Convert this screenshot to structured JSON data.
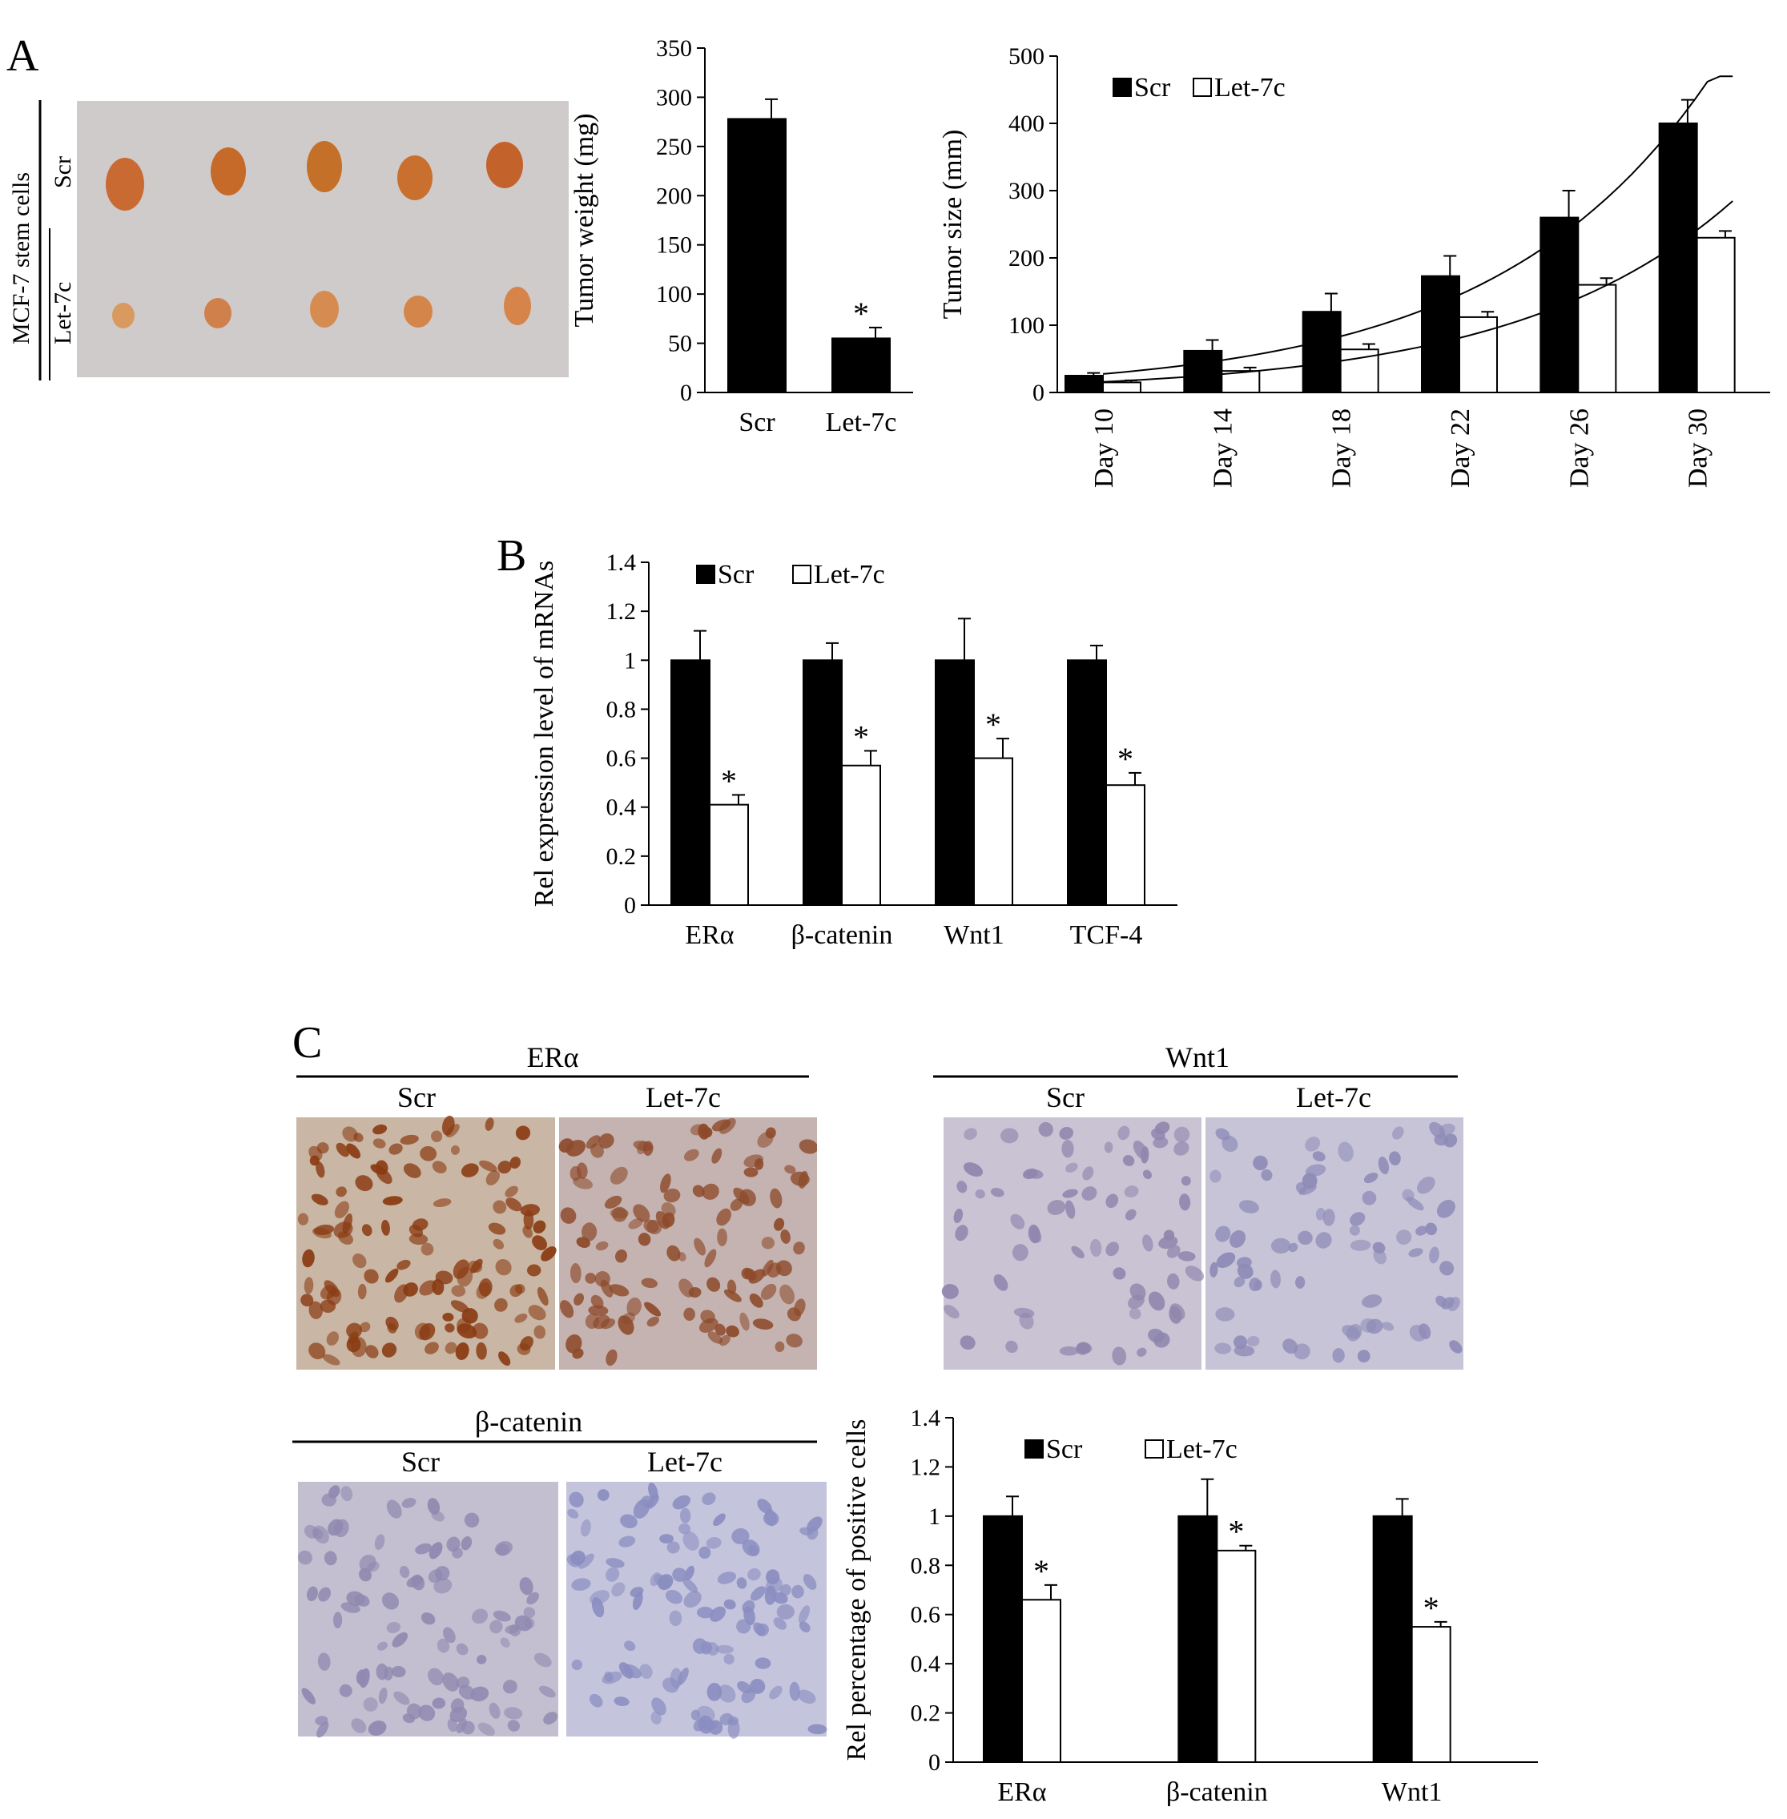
{
  "panels": {
    "A": {
      "letter": "A",
      "photo": {
        "side_label": "MCF-7 stem cells",
        "row_labels": [
          "Scr",
          "Let-7c"
        ],
        "colors": {
          "background": "#cfcbcc",
          "tumor_large": "#c9682f",
          "tumor_small": "#d98a4e"
        }
      }
    },
    "B": {
      "letter": "B"
    },
    "C": {
      "letter": "C",
      "images": [
        {
          "title": "ERα",
          "sub_labels": [
            "Scr",
            "Let-7c"
          ]
        },
        {
          "title": "Wnt1",
          "sub_labels": [
            "Scr",
            "Let-7c"
          ]
        },
        {
          "title": "β-catenin",
          "sub_labels": [
            "Scr",
            "Let-7c"
          ]
        }
      ]
    }
  },
  "chart_data": [
    {
      "id": "A-weight",
      "type": "bar",
      "categories": [
        "Scr",
        "Let-7c"
      ],
      "values": [
        278,
        55
      ],
      "errors": [
        20,
        11
      ],
      "significant": [
        false,
        true
      ],
      "ylabel": "Tumor weight (mg)",
      "ylim": [
        0,
        350
      ],
      "yticks": [
        0,
        50,
        100,
        150,
        200,
        250,
        300,
        350
      ],
      "colors": [
        "#000000",
        "#000000"
      ]
    },
    {
      "id": "A-size",
      "type": "bar",
      "categories": [
        "Day 10",
        "Day 14",
        "Day 18",
        "Day 22",
        "Day 26",
        "Day 30"
      ],
      "series": [
        {
          "name": "Scr",
          "values": [
            25,
            62,
            120,
            173,
            260,
            400
          ],
          "errors": [
            4,
            16,
            27,
            30,
            40,
            35
          ],
          "color": "#000000"
        },
        {
          "name": "Let-7c",
          "values": [
            15,
            32,
            64,
            112,
            160,
            230
          ],
          "errors": [
            3,
            5,
            8,
            8,
            10,
            10
          ],
          "color": "#ffffff"
        }
      ],
      "trendlines": true,
      "ylabel": "Tumor size (mm)",
      "ylim": [
        0,
        500
      ],
      "yticks": [
        0,
        100,
        200,
        300,
        400,
        500
      ],
      "legend": "top-left"
    },
    {
      "id": "B",
      "type": "bar",
      "categories": [
        "ERα",
        "β-catenin",
        "Wnt1",
        "TCF-4"
      ],
      "series": [
        {
          "name": "Scr",
          "values": [
            1,
            1,
            1,
            1
          ],
          "errors": [
            0.12,
            0.07,
            0.17,
            0.06
          ],
          "color": "#000000"
        },
        {
          "name": "Let-7c",
          "values": [
            0.41,
            0.57,
            0.6,
            0.49
          ],
          "errors": [
            0.04,
            0.06,
            0.08,
            0.05
          ],
          "color": "#ffffff"
        }
      ],
      "significant": [
        true,
        true,
        true,
        true
      ],
      "ylabel": "Rel expression level of mRNAs",
      "ylim": [
        0,
        1.4
      ],
      "yticks": [
        "0",
        "0.2",
        "0.4",
        "0.6",
        "0.8",
        "1",
        "1.2",
        "1.4"
      ],
      "legend": "top-left"
    },
    {
      "id": "C",
      "type": "bar",
      "categories": [
        "ERα",
        "β-catenin",
        "Wnt1"
      ],
      "series": [
        {
          "name": "Scr",
          "values": [
            1,
            1,
            1
          ],
          "errors": [
            0.08,
            0.15,
            0.07
          ],
          "color": "#000000"
        },
        {
          "name": "Let-7c",
          "values": [
            0.66,
            0.86,
            0.55
          ],
          "errors": [
            0.06,
            0.02,
            0.02
          ],
          "color": "#ffffff"
        }
      ],
      "significant": [
        true,
        true,
        true
      ],
      "ylabel": "Rel percentage of positive cells",
      "ylim": [
        0,
        1.4
      ],
      "yticks": [
        "0",
        "0.2",
        "0.4",
        "0.6",
        "0.8",
        "1",
        "1.2",
        "1.4"
      ],
      "legend": "top"
    }
  ]
}
